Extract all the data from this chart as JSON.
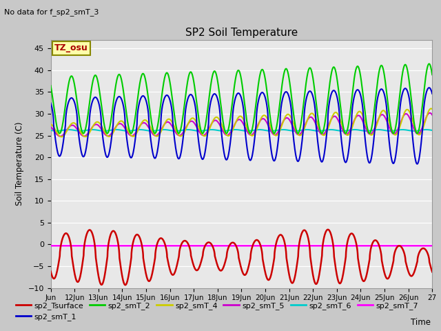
{
  "title": "SP2 Soil Temperature",
  "no_data_text": "No data for f_sp2_smT_3",
  "tz_label": "TZ_osu",
  "ylabel": "Soil Temperature (C)",
  "xlabel": "Time",
  "ylim": [
    -10,
    47
  ],
  "yticks": [
    -10,
    -5,
    0,
    5,
    10,
    15,
    20,
    25,
    30,
    35,
    40,
    45
  ],
  "xtick_labels": [
    "Jun",
    "12Jun",
    "13Jun",
    "14Jun",
    "15Jun",
    "16Jun",
    "17Jun",
    "18Jun",
    "19Jun",
    "20Jun",
    "21Jun",
    "22Jun",
    "23Jun",
    "24Jun",
    "25Jun",
    "26Jun",
    "27"
  ],
  "fig_bg": "#c8c8c8",
  "plot_bg": "#e8e8e8",
  "upper_bg": "#d8d8d8",
  "lower_bg": "#e0e0e0",
  "series": {
    "sp2_Tsurface": {
      "color": "#cc0000",
      "lw": 1.8
    },
    "sp2_smT_1": {
      "color": "#0000cc",
      "lw": 1.5
    },
    "sp2_smT_2": {
      "color": "#00cc00",
      "lw": 1.5
    },
    "sp2_smT_4": {
      "color": "#cccc00",
      "lw": 1.5
    },
    "sp2_smT_5": {
      "color": "#cc00cc",
      "lw": 1.5
    },
    "sp2_smT_6": {
      "color": "#00cccc",
      "lw": 1.5
    },
    "sp2_smT_7": {
      "color": "#ff00ff",
      "lw": 1.8
    }
  }
}
